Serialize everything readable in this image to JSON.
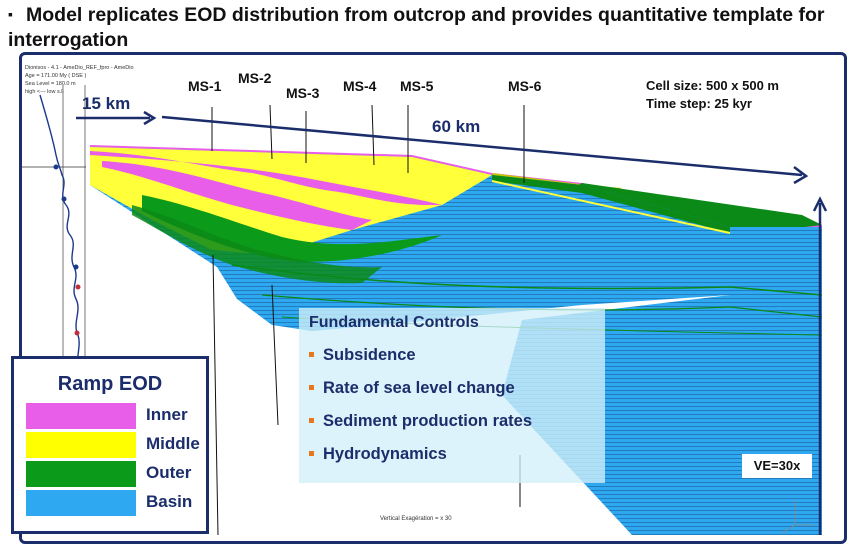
{
  "title": "Model replicates EOD distribution from outcrop and provides quantitative template for interrogation",
  "software_info": {
    "line1": "Dionisos - 4.1 - AmeDio_REF_fpro - AmeDio",
    "line2": "Age = 171.00 My ( DSE )",
    "line3": "Sea Level = 180.0 m",
    "line4": "high <--- low s.l."
  },
  "wells": [
    "MS-1",
    "MS-2",
    "MS-3",
    "MS-4",
    "MS-5",
    "MS-6"
  ],
  "distance_short": "15 km",
  "distance_long": "60 km",
  "cell_size": "Cell size: 500 x 500 m",
  "time_step": "Time step: 25 kyr",
  "controls": {
    "heading": "Fundamental Controls",
    "items": [
      "Subsidence",
      "Rate of sea level change",
      "Sediment production rates",
      "Hydrodynamics"
    ]
  },
  "legend": {
    "title": "Ramp EOD",
    "items": [
      {
        "label": "Inner",
        "color": "#e85ee8"
      },
      {
        "label": "Middle",
        "color": "#ffff00"
      },
      {
        "label": "Outer",
        "color": "#0b9a1a"
      },
      {
        "label": "Basin",
        "color": "#2ea8f0"
      }
    ]
  },
  "vertical_exaggeration": "VE=30x",
  "vertical_exaggeration_caption": "Vertical Exagération = x 30",
  "colors": {
    "frame": "#1b2d6b",
    "accent": "#e8761a",
    "basin": "#2ea8f0"
  }
}
